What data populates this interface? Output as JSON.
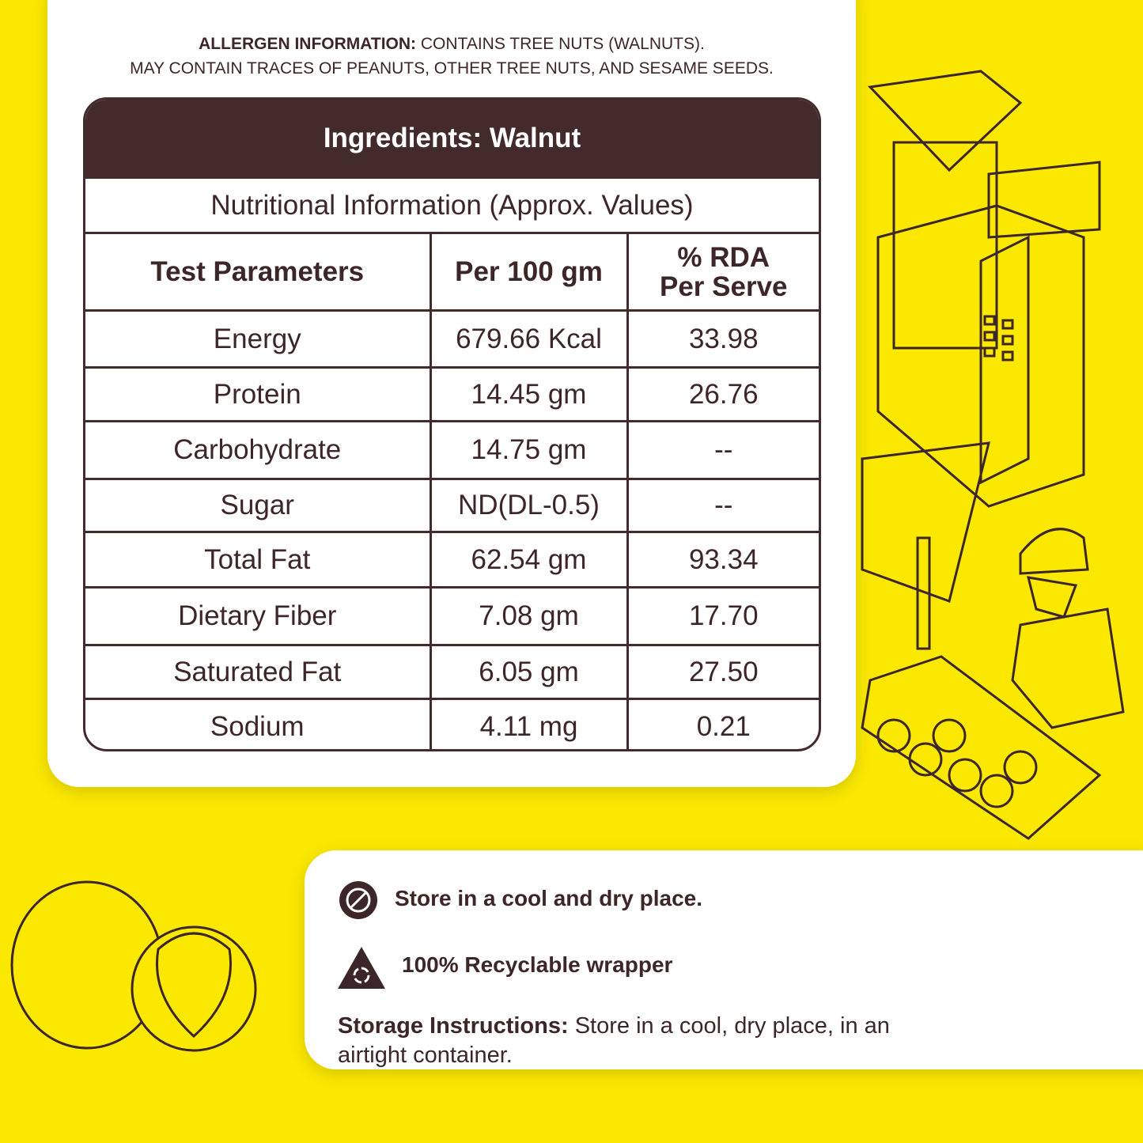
{
  "allergen": {
    "label": "ALLERGEN INFORMATION:",
    "text": "CONTAINS TREE NUTS (WALNUTS).",
    "line2": "MAY CONTAIN TRACES OF PEANUTS, OTHER TREE NUTS, AND SESAME SEEDS."
  },
  "table": {
    "title": "Ingredients: Walnut",
    "subtitle": "Nutritional Information (Approx. Values)",
    "header": [
      "Test Parameters",
      "Per 100 gm",
      [
        "% RDA",
        "Per Serve"
      ]
    ],
    "rows": [
      [
        "Energy",
        "679.66 Kcal",
        "33.98"
      ],
      [
        "Protein",
        "14.45 gm",
        "26.76"
      ],
      [
        "Carbohydrate",
        "14.75 gm",
        "--"
      ],
      [
        "Sugar",
        "ND(DL-0.5)",
        "--"
      ],
      [
        "Total Fat",
        "62.54 gm",
        "93.34"
      ],
      [
        "Dietary Fiber",
        "7.08 gm",
        "17.70"
      ],
      [
        "Saturated Fat",
        "6.05 gm",
        "27.50"
      ],
      [
        "Sodium",
        "4.11 mg",
        "0.21"
      ]
    ]
  },
  "storage": {
    "items": [
      "Store in a cool and dry place.",
      "100% Recyclable wrapper"
    ],
    "label": "Storage Instructions:",
    "text": "Store in a cool, dry place, in an airtight container."
  }
}
